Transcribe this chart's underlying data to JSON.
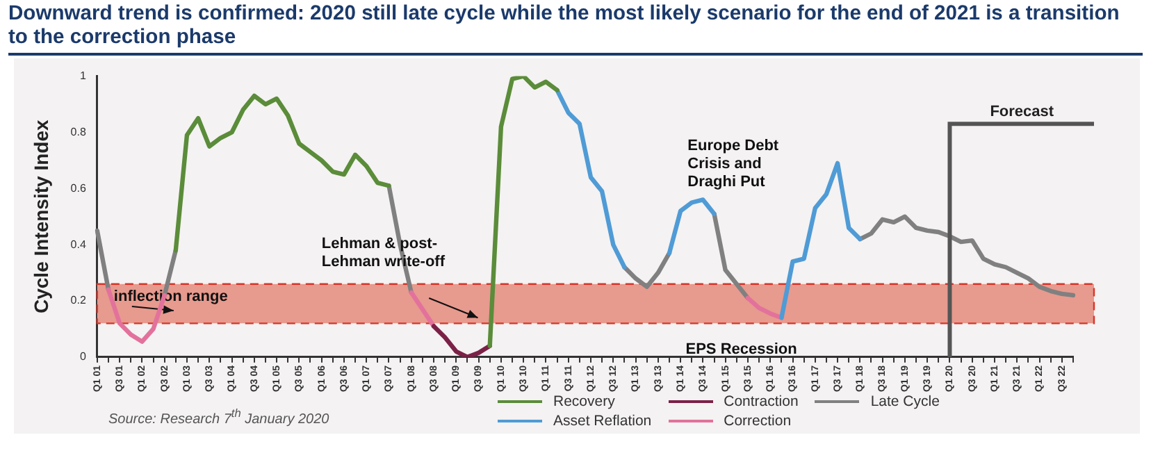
{
  "chart_data": {
    "type": "line",
    "title": "Downward trend is confirmed: 2020 still late cycle while the most likely scenario for the end of 2021 is a transition to the correction phase",
    "ylabel": "Cycle Intensity Index",
    "categories": [
      "Q1 01",
      null,
      "Q3 01",
      null,
      "Q1 02",
      null,
      "Q3 02",
      null,
      "Q1 03",
      null,
      "Q3 03",
      null,
      "Q1 04",
      null,
      "Q3 04",
      null,
      "Q1 05",
      null,
      "Q3 05",
      null,
      "Q1 06",
      null,
      "Q3 06",
      null,
      "Q1 07",
      null,
      "Q3 07",
      null,
      "Q1 08",
      null,
      "Q3 08",
      null,
      "Q1 09",
      null,
      "Q3 09",
      null,
      "Q1 10",
      null,
      "Q3 10",
      null,
      "Q1 11",
      null,
      "Q3 11",
      null,
      "Q1 12",
      null,
      "Q3 12",
      null,
      "Q1 13",
      null,
      "Q3 13",
      null,
      "Q1 14",
      null,
      "Q3 14",
      null,
      "Q1 15",
      null,
      "Q3 15",
      null,
      "Q1 16",
      null,
      "Q3 16",
      null,
      "Q1 17",
      null,
      "Q3 17",
      null,
      "Q1 18",
      null,
      "Q3 18",
      null,
      "Q1 19",
      null,
      "Q3 19",
      null,
      "Q1 20",
      null,
      "Q3 20",
      null,
      "Q1 21",
      null,
      "Q3 21",
      null,
      "Q1 22",
      null,
      "Q3 22",
      null
    ],
    "series": [
      {
        "name": "Recovery",
        "color": "#5b8c3a",
        "values": [
          null,
          null,
          null,
          null,
          null,
          null,
          null,
          0.38,
          0.79,
          0.85,
          0.75,
          0.78,
          0.8,
          0.88,
          0.93,
          0.9,
          0.92,
          0.86,
          0.76,
          0.73,
          0.7,
          0.66,
          0.65,
          0.72,
          0.68,
          0.62,
          0.61,
          null,
          null,
          null,
          null,
          null,
          null,
          null,
          null,
          0.04,
          0.82,
          0.99,
          1.0,
          0.96,
          0.98,
          0.95,
          null,
          null,
          null,
          null,
          null,
          null,
          null,
          null,
          null,
          null,
          null,
          null,
          null,
          null,
          null,
          null,
          null,
          null,
          null,
          null,
          null,
          null,
          null,
          null,
          null,
          null,
          null,
          null,
          null,
          null,
          null,
          null,
          null,
          null,
          null,
          null,
          null,
          null,
          null,
          null,
          null,
          null,
          null,
          null,
          null,
          null
        ]
      },
      {
        "name": "Asset Reflation",
        "color": "#4f9bd6",
        "values": [
          null,
          null,
          null,
          null,
          null,
          null,
          null,
          null,
          null,
          null,
          null,
          null,
          null,
          null,
          null,
          null,
          null,
          null,
          null,
          null,
          null,
          null,
          null,
          null,
          null,
          null,
          null,
          null,
          null,
          null,
          null,
          null,
          null,
          null,
          null,
          null,
          null,
          null,
          null,
          null,
          null,
          0.95,
          0.87,
          0.83,
          0.64,
          0.59,
          0.4,
          0.32,
          null,
          null,
          null,
          0.37,
          0.52,
          0.55,
          0.56,
          0.51,
          null,
          null,
          null,
          null,
          null,
          0.14,
          0.34,
          0.35,
          0.53,
          0.58,
          0.69,
          0.46,
          0.42,
          null,
          null,
          null,
          null,
          null,
          null,
          null,
          null,
          null,
          null,
          null,
          null,
          null,
          null,
          null,
          null,
          null,
          null,
          null
        ]
      },
      {
        "name": "Contraction",
        "color": "#7b2148",
        "values": [
          null,
          null,
          null,
          null,
          null,
          null,
          null,
          null,
          null,
          null,
          null,
          null,
          null,
          null,
          null,
          null,
          null,
          null,
          null,
          null,
          null,
          null,
          null,
          null,
          null,
          null,
          null,
          null,
          null,
          null,
          0.11,
          0.07,
          0.02,
          0.0,
          0.015,
          0.04,
          null,
          null,
          null,
          null,
          null,
          null,
          null,
          null,
          null,
          null,
          null,
          null,
          null,
          null,
          null,
          null,
          null,
          null,
          null,
          null,
          null,
          null,
          null,
          null,
          null,
          null,
          null,
          null,
          null,
          null,
          null,
          null,
          null,
          null,
          null,
          null,
          null,
          null,
          null,
          null,
          null,
          null,
          null,
          null,
          null,
          null,
          null,
          null,
          null,
          null,
          null,
          null
        ]
      },
      {
        "name": "Correction",
        "color": "#e2729c",
        "values": [
          null,
          0.24,
          0.12,
          0.08,
          0.055,
          0.1,
          0.22,
          null,
          null,
          null,
          null,
          null,
          null,
          null,
          null,
          null,
          null,
          null,
          null,
          null,
          null,
          null,
          null,
          null,
          null,
          null,
          null,
          null,
          0.23,
          0.17,
          0.11,
          null,
          null,
          null,
          null,
          null,
          null,
          null,
          null,
          null,
          null,
          null,
          null,
          null,
          null,
          null,
          null,
          null,
          null,
          null,
          null,
          null,
          null,
          null,
          null,
          null,
          null,
          null,
          0.21,
          0.175,
          0.155,
          0.14,
          null,
          null,
          null,
          null,
          null,
          null,
          null,
          null,
          null,
          null,
          null,
          null,
          null,
          null,
          null,
          null,
          null,
          null,
          null,
          null,
          null,
          null,
          null,
          null,
          null,
          null
        ]
      },
      {
        "name": "Late Cycle",
        "color": "#808080",
        "values": [
          0.45,
          0.24,
          null,
          null,
          null,
          null,
          0.22,
          0.38,
          null,
          null,
          null,
          null,
          null,
          null,
          null,
          null,
          null,
          null,
          null,
          null,
          null,
          null,
          null,
          null,
          null,
          null,
          0.61,
          0.4,
          0.23,
          null,
          null,
          null,
          null,
          null,
          null,
          null,
          null,
          null,
          null,
          null,
          null,
          null,
          null,
          null,
          null,
          null,
          null,
          0.32,
          0.28,
          0.25,
          0.3,
          0.37,
          null,
          null,
          null,
          0.51,
          0.31,
          0.26,
          0.21,
          null,
          null,
          null,
          null,
          null,
          null,
          null,
          null,
          null,
          0.42,
          0.44,
          0.49,
          0.48,
          0.5,
          0.46,
          0.45,
          0.445,
          0.43,
          0.41,
          0.415,
          0.35,
          0.33,
          0.32,
          0.3,
          0.28,
          0.25,
          0.235,
          0.225,
          0.22
        ]
      }
    ],
    "ylim": [
      0,
      1
    ],
    "yticks": [
      0,
      0.2,
      0.4,
      0.6,
      0.8,
      1
    ],
    "grid": false,
    "legend": "bottom right",
    "marker": "none",
    "line_style": "solid",
    "bands": [
      {
        "axis": "y",
        "from": 0.12,
        "to": 0.26,
        "label": "inflection range",
        "color": "#e79a8e"
      }
    ],
    "ref_lines": [
      {
        "axis": "x",
        "value": "Q1 20",
        "label": "Forecast",
        "color": "#555555"
      }
    ],
    "annotations": [
      "Lehman & post-Lehman write-off",
      "Europe Debt Crisis and Draghi Put",
      "EPS Recession",
      "Source: Research 7$^{th}$ January 2020"
    ]
  }
}
